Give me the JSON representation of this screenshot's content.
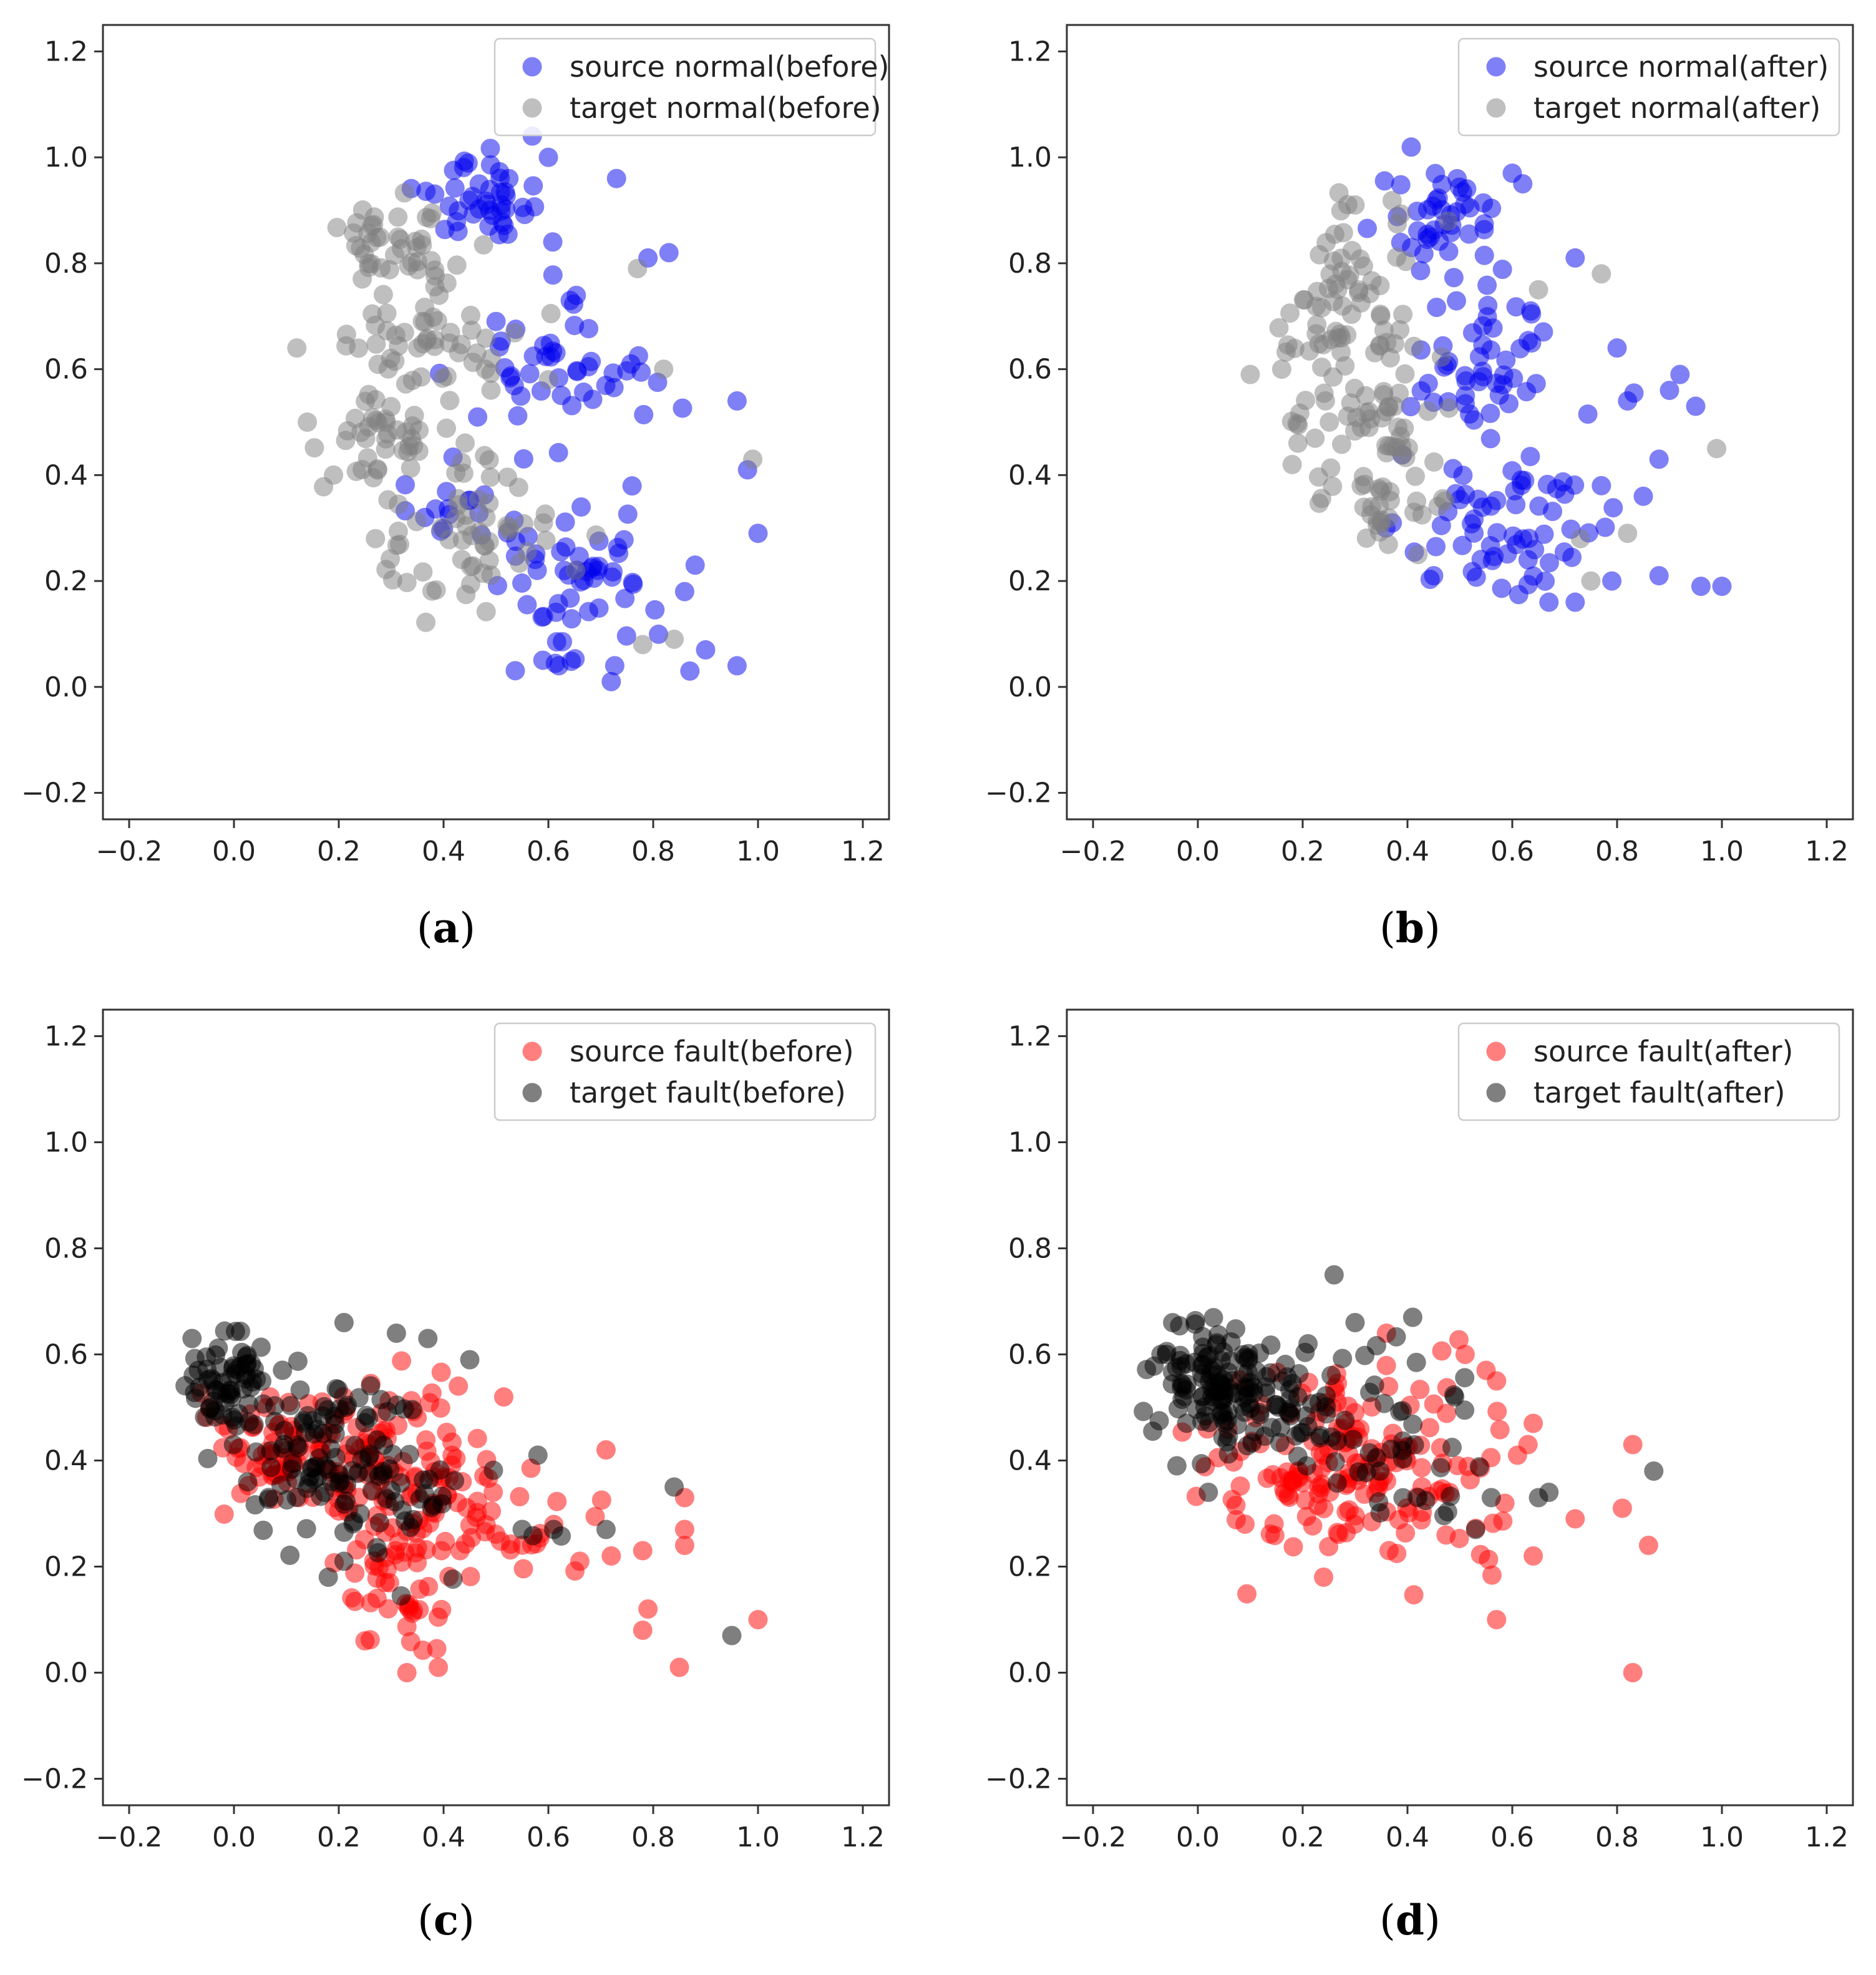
{
  "colors": {
    "source_normal": "#0000ee",
    "target_normal": "#808080",
    "source_fault": "#ff0000",
    "target_fault": "#000000"
  },
  "chart_data": [
    {
      "type": "scatter",
      "panel_label": "a",
      "xlim": [
        -0.25,
        1.25
      ],
      "ylim": [
        -0.25,
        1.25
      ],
      "xticks": [
        "−0.2",
        "0.0",
        "0.2",
        "0.4",
        "0.6",
        "0.8",
        "1.0",
        "1.2"
      ],
      "yticks": [
        "−0.2",
        "0.0",
        "0.2",
        "0.4",
        "0.6",
        "0.8",
        "1.0",
        "1.2"
      ],
      "legend_position": "top-right",
      "series": [
        {
          "name": "source normal(before)",
          "color": "#0000ee",
          "clusters": [
            {
              "cx": 0.47,
              "cy": 0.92,
              "sx": 0.06,
              "sy": 0.05,
              "n": 45
            },
            {
              "cx": 0.62,
              "cy": 0.57,
              "sx": 0.09,
              "sy": 0.07,
              "n": 50
            },
            {
              "cx": 0.63,
              "cy": 0.19,
              "sx": 0.08,
              "sy": 0.07,
              "n": 55
            },
            {
              "cx": 0.42,
              "cy": 0.33,
              "sx": 0.04,
              "sy": 0.04,
              "n": 15
            }
          ],
          "points": [
            [
              0.73,
              0.96
            ],
            [
              0.83,
              0.82
            ],
            [
              0.79,
              0.81
            ],
            [
              0.96,
              0.54
            ],
            [
              0.98,
              0.41
            ],
            [
              1.0,
              0.29
            ],
            [
              0.96,
              0.04
            ],
            [
              0.9,
              0.07
            ],
            [
              0.88,
              0.23
            ],
            [
              0.86,
              0.18
            ],
            [
              0.72,
              0.01
            ],
            [
              0.87,
              0.03
            ],
            [
              0.62,
              0.04
            ],
            [
              0.6,
              1.0
            ]
          ]
        },
        {
          "name": "target normal(before)",
          "color": "#808080",
          "clusters": [
            {
              "cx": 0.32,
              "cy": 0.84,
              "sx": 0.07,
              "sy": 0.05,
              "n": 45
            },
            {
              "cx": 0.36,
              "cy": 0.65,
              "sx": 0.08,
              "sy": 0.05,
              "n": 45
            },
            {
              "cx": 0.3,
              "cy": 0.48,
              "sx": 0.06,
              "sy": 0.04,
              "n": 40
            },
            {
              "cx": 0.44,
              "cy": 0.29,
              "sx": 0.08,
              "sy": 0.07,
              "n": 60
            }
          ],
          "points": [
            [
              0.12,
              0.64
            ],
            [
              0.14,
              0.5
            ],
            [
              0.19,
              0.4
            ],
            [
              0.27,
              0.28
            ],
            [
              0.82,
              0.6
            ],
            [
              0.77,
              0.79
            ],
            [
              0.99,
              0.43
            ],
            [
              0.78,
              0.08
            ],
            [
              0.84,
              0.09
            ],
            [
              0.48,
              0.6
            ],
            [
              0.6,
              0.58
            ]
          ]
        }
      ]
    },
    {
      "type": "scatter",
      "panel_label": "b",
      "xlim": [
        -0.25,
        1.25
      ],
      "ylim": [
        -0.25,
        1.25
      ],
      "xticks": [
        "−0.2",
        "0.0",
        "0.2",
        "0.4",
        "0.6",
        "0.8",
        "1.0",
        "1.2"
      ],
      "yticks": [
        "−0.2",
        "0.0",
        "0.2",
        "0.4",
        "0.6",
        "0.8",
        "1.0",
        "1.2"
      ],
      "legend_position": "top-right",
      "series": [
        {
          "name": "source normal(after)",
          "color": "#0000ee",
          "clusters": [
            {
              "cx": 0.47,
              "cy": 0.88,
              "sx": 0.06,
              "sy": 0.06,
              "n": 40
            },
            {
              "cx": 0.56,
              "cy": 0.6,
              "sx": 0.08,
              "sy": 0.1,
              "n": 55
            },
            {
              "cx": 0.57,
              "cy": 0.31,
              "sx": 0.08,
              "sy": 0.06,
              "n": 60
            }
          ],
          "points": [
            [
              0.6,
              0.97
            ],
            [
              0.62,
              0.95
            ],
            [
              0.72,
              0.81
            ],
            [
              0.77,
              0.38
            ],
            [
              0.8,
              0.64
            ],
            [
              0.82,
              0.54
            ],
            [
              0.9,
              0.56
            ],
            [
              0.92,
              0.59
            ],
            [
              0.95,
              0.53
            ],
            [
              0.88,
              0.43
            ],
            [
              0.85,
              0.36
            ],
            [
              0.88,
              0.21
            ],
            [
              0.96,
              0.19
            ],
            [
              1.0,
              0.19
            ],
            [
              0.79,
              0.2
            ],
            [
              0.72,
              0.16
            ],
            [
              0.67,
              0.16
            ],
            [
              0.45,
              0.21
            ]
          ]
        },
        {
          "name": "target normal(after)",
          "color": "#808080",
          "clusters": [
            {
              "cx": 0.3,
              "cy": 0.78,
              "sx": 0.06,
              "sy": 0.07,
              "n": 50
            },
            {
              "cx": 0.31,
              "cy": 0.55,
              "sx": 0.07,
              "sy": 0.09,
              "n": 70
            },
            {
              "cx": 0.36,
              "cy": 0.35,
              "sx": 0.06,
              "sy": 0.05,
              "n": 30
            }
          ],
          "points": [
            [
              0.1,
              0.59
            ],
            [
              0.16,
              0.6
            ],
            [
              0.18,
              0.42
            ],
            [
              0.99,
              0.45
            ],
            [
              0.77,
              0.78
            ],
            [
              0.65,
              0.75
            ],
            [
              0.75,
              0.2
            ],
            [
              0.82,
              0.29
            ],
            [
              0.73,
              0.28
            ],
            [
              0.3,
              0.91
            ],
            [
              0.42,
              0.25
            ]
          ]
        }
      ]
    },
    {
      "type": "scatter",
      "panel_label": "c",
      "xlim": [
        -0.25,
        1.25
      ],
      "ylim": [
        -0.25,
        1.25
      ],
      "xticks": [
        "−0.2",
        "0.0",
        "0.2",
        "0.4",
        "0.6",
        "0.8",
        "1.0",
        "1.2"
      ],
      "yticks": [
        "−0.2",
        "0.0",
        "0.2",
        "0.4",
        "0.6",
        "0.8",
        "1.0",
        "1.2"
      ],
      "legend_position": "top-right",
      "series": [
        {
          "name": "source fault(before)",
          "color": "#ff0000",
          "clusters": [
            {
              "cx": 0.08,
              "cy": 0.42,
              "sx": 0.07,
              "sy": 0.05,
              "n": 60
            },
            {
              "cx": 0.3,
              "cy": 0.38,
              "sx": 0.1,
              "sy": 0.09,
              "n": 110
            },
            {
              "cx": 0.31,
              "cy": 0.15,
              "sx": 0.05,
              "sy": 0.06,
              "n": 35
            },
            {
              "cx": 0.52,
              "cy": 0.3,
              "sx": 0.08,
              "sy": 0.07,
              "n": 35
            }
          ],
          "points": [
            [
              0.71,
              0.42
            ],
            [
              0.72,
              0.22
            ],
            [
              0.78,
              0.23
            ],
            [
              0.86,
              0.33
            ],
            [
              0.86,
              0.27
            ],
            [
              0.86,
              0.24
            ],
            [
              0.79,
              0.12
            ],
            [
              0.78,
              0.08
            ],
            [
              0.85,
              0.01
            ],
            [
              1.0,
              0.1
            ],
            [
              0.66,
              0.21
            ],
            [
              0.33,
              0.0
            ],
            [
              0.39,
              0.01
            ],
            [
              0.25,
              0.06
            ]
          ]
        },
        {
          "name": "target fault(before)",
          "color": "#000000",
          "clusters": [
            {
              "cx": -0.01,
              "cy": 0.55,
              "sx": 0.04,
              "sy": 0.04,
              "n": 60
            },
            {
              "cx": 0.15,
              "cy": 0.42,
              "sx": 0.08,
              "sy": 0.07,
              "n": 90
            },
            {
              "cx": 0.35,
              "cy": 0.35,
              "sx": 0.08,
              "sy": 0.07,
              "n": 40
            }
          ],
          "points": [
            [
              -0.08,
              0.63
            ],
            [
              0.21,
              0.66
            ],
            [
              0.31,
              0.64
            ],
            [
              0.37,
              0.63
            ],
            [
              0.45,
              0.59
            ],
            [
              0.84,
              0.35
            ],
            [
              0.71,
              0.27
            ],
            [
              0.95,
              0.07
            ],
            [
              0.58,
              0.41
            ],
            [
              0.55,
              0.27
            ],
            [
              0.61,
              0.27
            ],
            [
              0.21,
              0.21
            ],
            [
              0.18,
              0.18
            ]
          ]
        }
      ]
    },
    {
      "type": "scatter",
      "panel_label": "d",
      "xlim": [
        -0.25,
        1.25
      ],
      "ylim": [
        -0.25,
        1.25
      ],
      "xticks": [
        "−0.2",
        "0.0",
        "0.2",
        "0.4",
        "0.6",
        "0.8",
        "1.0",
        "1.2"
      ],
      "yticks": [
        "−0.2",
        "0.0",
        "0.2",
        "0.4",
        "0.6",
        "0.8",
        "1.0",
        "1.2"
      ],
      "legend_position": "top-right",
      "series": [
        {
          "name": "source fault(after)",
          "color": "#ff0000",
          "clusters": [
            {
              "cx": 0.24,
              "cy": 0.4,
              "sx": 0.1,
              "sy": 0.09,
              "n": 130
            },
            {
              "cx": 0.48,
              "cy": 0.35,
              "sx": 0.08,
              "sy": 0.1,
              "n": 40
            }
          ],
          "points": [
            [
              0.51,
              0.6
            ],
            [
              0.55,
              0.57
            ],
            [
              0.57,
              0.55
            ],
            [
              0.64,
              0.47
            ],
            [
              0.63,
              0.43
            ],
            [
              0.61,
              0.41
            ],
            [
              0.72,
              0.29
            ],
            [
              0.81,
              0.31
            ],
            [
              0.83,
              0.43
            ],
            [
              0.86,
              0.24
            ],
            [
              0.57,
              0.1
            ],
            [
              0.83,
              0.0
            ],
            [
              0.64,
              0.22
            ],
            [
              0.24,
              0.18
            ],
            [
              0.09,
              0.28
            ],
            [
              0.36,
              0.64
            ]
          ]
        },
        {
          "name": "target fault(after)",
          "color": "#000000",
          "clusters": [
            {
              "cx": 0.02,
              "cy": 0.55,
              "sx": 0.05,
              "sy": 0.05,
              "n": 100
            },
            {
              "cx": 0.15,
              "cy": 0.5,
              "sx": 0.07,
              "sy": 0.06,
              "n": 60
            },
            {
              "cx": 0.35,
              "cy": 0.42,
              "sx": 0.09,
              "sy": 0.08,
              "n": 40
            }
          ],
          "points": [
            [
              0.26,
              0.75
            ],
            [
              0.41,
              0.67
            ],
            [
              0.3,
              0.66
            ],
            [
              0.87,
              0.38
            ],
            [
              0.67,
              0.34
            ],
            [
              0.65,
              0.33
            ],
            [
              0.56,
              0.33
            ],
            [
              0.53,
              0.27
            ],
            [
              0.02,
              0.34
            ],
            [
              -0.04,
              0.39
            ],
            [
              -0.06,
              0.6
            ],
            [
              0.42,
              0.33
            ]
          ]
        }
      ]
    }
  ]
}
